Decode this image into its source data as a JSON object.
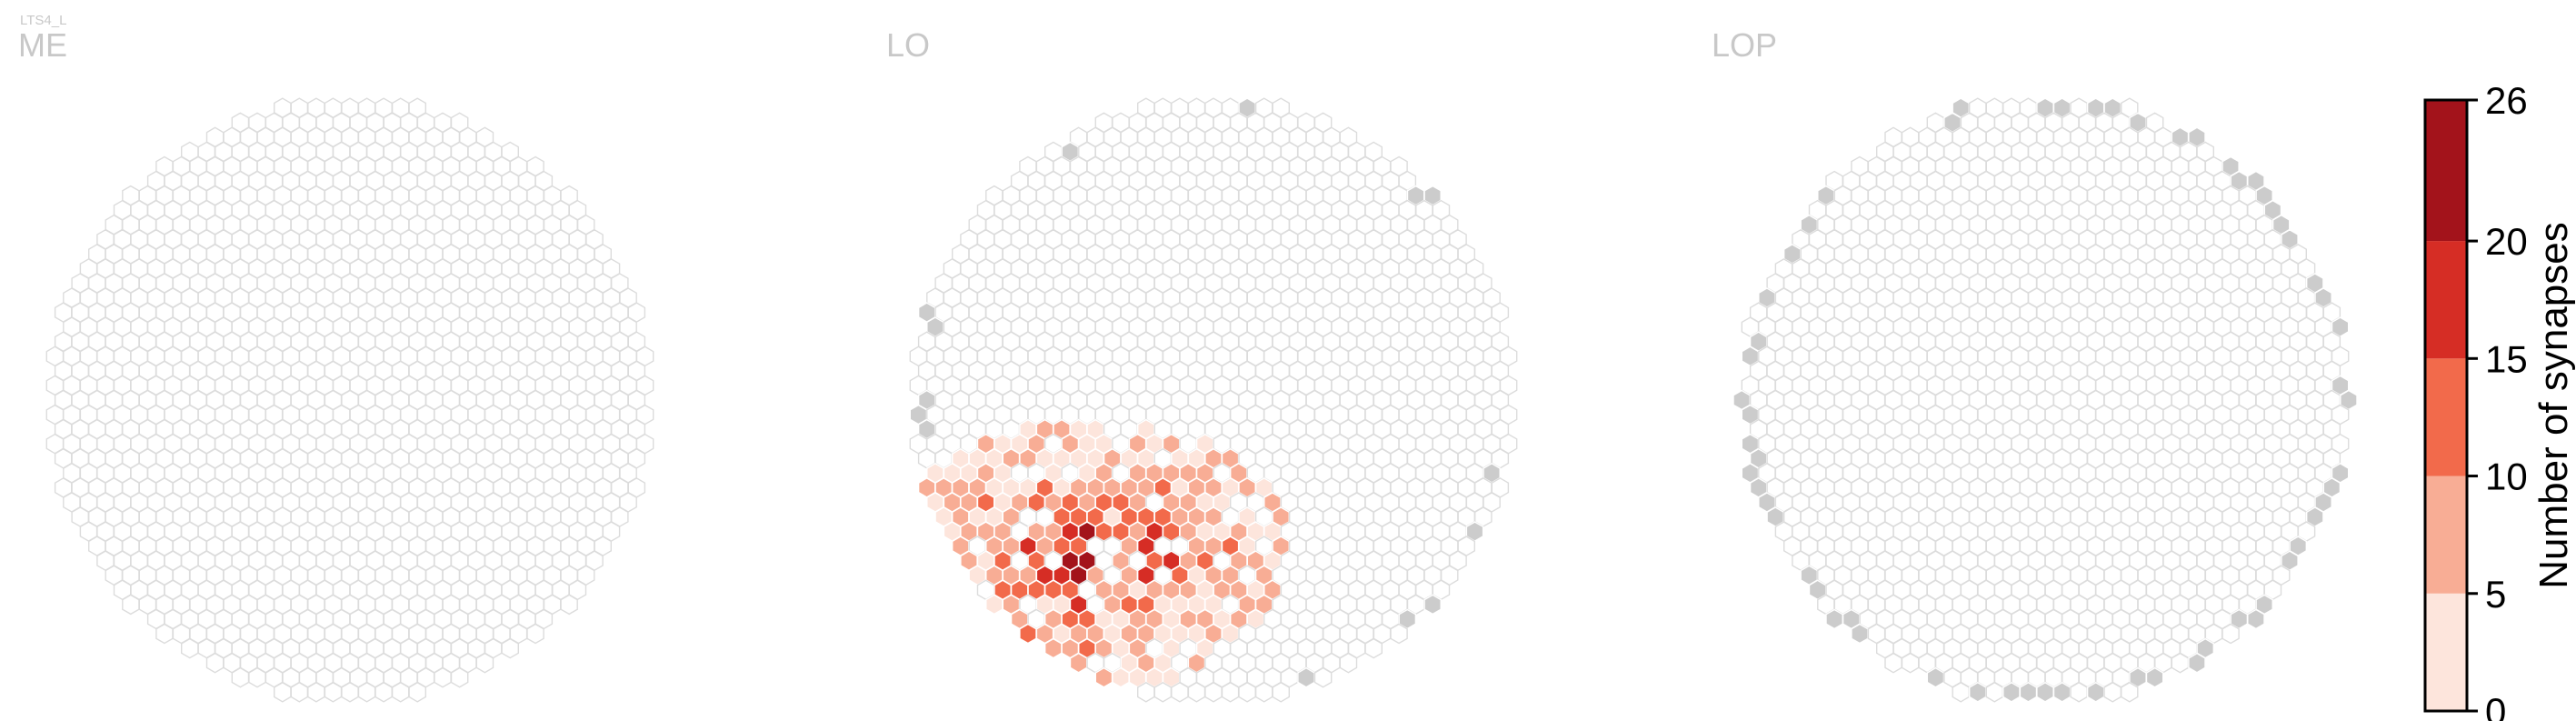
{
  "neuron_label": "LTS4_L",
  "panels": [
    {
      "key": "me",
      "title": "ME"
    },
    {
      "key": "lo",
      "title": "LO"
    },
    {
      "key": "lop",
      "title": "LOP"
    }
  ],
  "colorbar": {
    "label": "Number of synapses",
    "ticks": [
      "0",
      "5",
      "10",
      "15",
      "20",
      "26"
    ],
    "bins": [
      {
        "from": 0,
        "to": 5,
        "color": "#fde5dc"
      },
      {
        "from": 5,
        "to": 10,
        "color": "#f8ad95"
      },
      {
        "from": 10,
        "to": 15,
        "color": "#f26a4b"
      },
      {
        "from": 15,
        "to": 20,
        "color": "#d62d25"
      },
      {
        "from": 20,
        "to": 26,
        "color": "#a3131b"
      }
    ]
  },
  "colors": {
    "empty_outline": "#dcdcdc",
    "no_data_gray": "#cccccc",
    "title_gray": "#c8c8c8"
  },
  "chart_data": {
    "type": "heatmap",
    "description_units": "hexagonal column grid per neuropil, value = number of synapses per column",
    "value_range": [
      0,
      26
    ],
    "panels": [
      {
        "name": "ME",
        "nonzero_columns": 0
      },
      {
        "name": "LO",
        "max_value": 26,
        "approx_value_distribution": {
          "0-5": 70,
          "5-10": 35,
          "10-15": 22,
          "15-20": 8,
          "20-26": 3
        }
      },
      {
        "name": "LOP",
        "nonzero_columns": 0
      }
    ]
  }
}
